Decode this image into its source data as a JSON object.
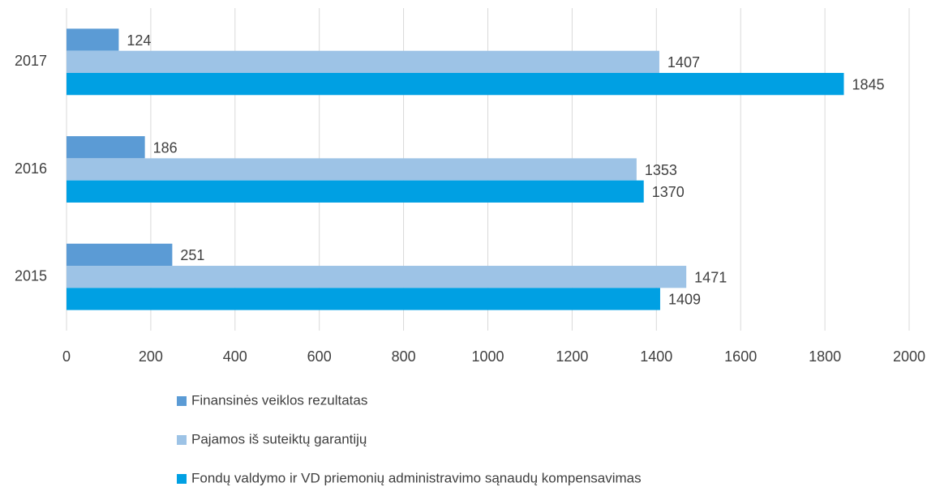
{
  "chart_data": {
    "type": "bar",
    "orientation": "horizontal",
    "categories": [
      "2015",
      "2016",
      "2017"
    ],
    "series": [
      {
        "name": "Finansinės veiklos rezultatas",
        "color": "#5b9bd5",
        "values": [
          251,
          186,
          124
        ]
      },
      {
        "name": "Pajamos iš suteiktų garantijų",
        "color": "#9dc3e6",
        "values": [
          1471,
          1353,
          1407
        ]
      },
      {
        "name": "Fondų valdymo ir VD priemonių administravimo sąnaudų kompensavimas",
        "color": "#00a0e3",
        "values": [
          1409,
          1370,
          1845
        ]
      }
    ],
    "xlim": [
      0,
      2000
    ],
    "xticks": [
      0,
      200,
      400,
      600,
      800,
      1000,
      1200,
      1400,
      1600,
      1800,
      2000
    ],
    "grid": true,
    "legend": "bottom"
  }
}
